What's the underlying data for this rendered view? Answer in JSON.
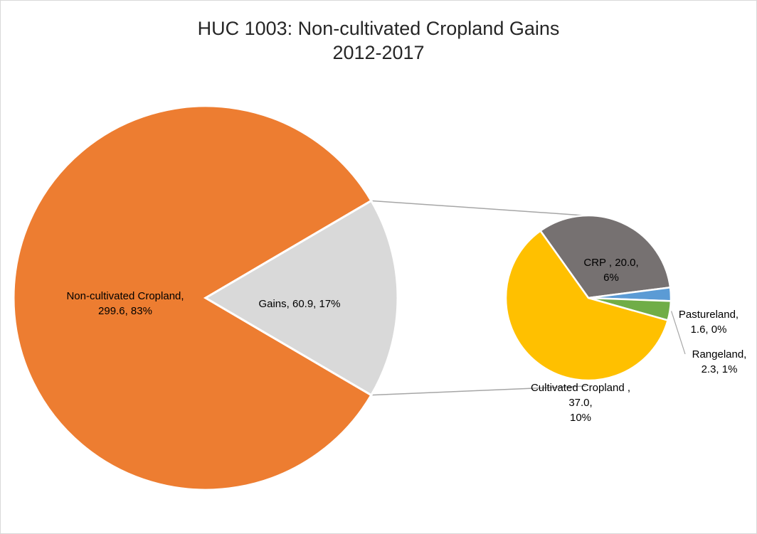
{
  "chart_data": {
    "type": "pie",
    "subtype": "pie-of-pie",
    "title": "HUC 1003: Non-cultivated Cropland Gains",
    "subtitle": "2012-2017",
    "primary": [
      {
        "label": "Non-cultivated Cropland",
        "value": 299.6,
        "percent": "83%",
        "color": "#ed7d31",
        "label_lines": [
          "Non-cultivated Cropland,",
          "299.6, 83%"
        ]
      },
      {
        "label": "Gains",
        "value": 60.9,
        "percent": "17%",
        "color": "#d9d9d9",
        "label_lines": [
          "Gains, 60.9, 17%"
        ]
      }
    ],
    "secondary": [
      {
        "label": "CRP",
        "value": 20.0,
        "percent": "6%",
        "color": "#767171",
        "label_lines": [
          "CRP , 20.0,",
          "6%"
        ]
      },
      {
        "label": "Pastureland",
        "value": 1.6,
        "percent": "0%",
        "color": "#5b9bd5",
        "label_lines": [
          "Pastureland,",
          "1.6, 0%"
        ]
      },
      {
        "label": "Rangeland",
        "value": 2.3,
        "percent": "1%",
        "color": "#70ad47",
        "label_lines": [
          "Rangeland,",
          "2.3, 1%"
        ]
      },
      {
        "label": "Cultivated Cropland",
        "value": 37.0,
        "percent": "10%",
        "color": "#ffc000",
        "label_lines": [
          "Cultivated Cropland ,",
          "37.0,",
          "10%"
        ]
      }
    ]
  }
}
